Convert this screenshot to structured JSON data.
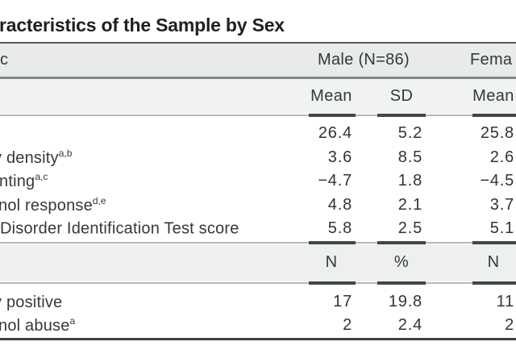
{
  "title": "racteristics of the Sample by Sex",
  "table": {
    "header": {
      "characteristic": "c",
      "male_group": "Male (N=86)",
      "female_group": "Fema"
    },
    "mean_sd_header": {
      "col1": "Mean",
      "col2": "SD",
      "col3": "Mean"
    },
    "mean_rows": [
      {
        "label": "",
        "sup": "",
        "male_mean": "26.4",
        "male_sd": "5.2",
        "female_mean": "25.8"
      },
      {
        "label": "y density",
        "sup": "a,b",
        "male_mean": "3.6",
        "male_sd": "8.5",
        "female_mean": "2.6"
      },
      {
        "label": "nting",
        "sup": "a,c",
        "male_mean": "−4.7",
        "male_sd": "1.8",
        "female_mean": "−4.5"
      },
      {
        "label": "nol response",
        "sup": "d,e",
        "male_mean": "4.8",
        "male_sd": "2.1",
        "female_mean": "3.7"
      },
      {
        "label": "Disorder Identification Test score",
        "sup": "",
        "male_mean": "5.8",
        "male_sd": "2.5",
        "female_mean": "5.1"
      }
    ],
    "count_header": {
      "col1": "N",
      "col2": "%",
      "col3": "N"
    },
    "count_rows": [
      {
        "label": "y positive",
        "sup": "",
        "male_n": "17",
        "male_pct": "19.8",
        "female_n": "11"
      },
      {
        "label": "nol abuse",
        "sup": "a",
        "male_n": "2",
        "male_pct": "2.4",
        "female_n": "2"
      }
    ]
  },
  "colors": {
    "header_bg": "#e8ebe8",
    "subheader_bg": "#f1f3f0",
    "count_header_bg": "#eef0ed",
    "rule_dark": "#3e4341",
    "rule_grey": "#b4b9b5",
    "text": "#34383b"
  }
}
